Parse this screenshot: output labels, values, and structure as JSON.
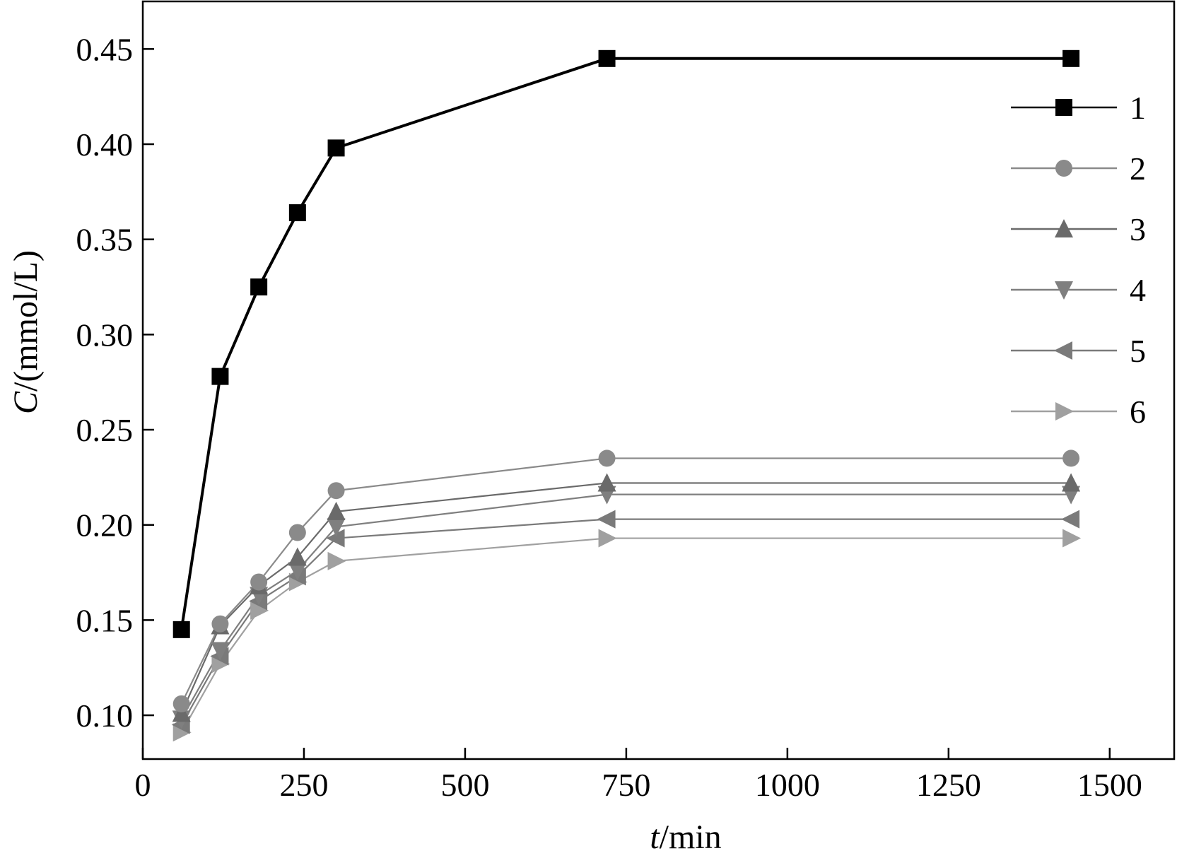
{
  "chart_data": {
    "type": "line",
    "xlabel": {
      "var": "t",
      "unit": "/min"
    },
    "ylabel": {
      "var": "C",
      "unit": "/(mmol/L)"
    },
    "xlim": [
      0,
      1600
    ],
    "ylim": [
      0.077,
      0.475
    ],
    "xticks": [
      0,
      250,
      500,
      750,
      1000,
      1250,
      1500
    ],
    "xtick_labels": [
      "0",
      "250",
      "500",
      "750",
      "1000",
      "1250",
      "1500"
    ],
    "yticks": [
      0.1,
      0.15,
      0.2,
      0.25,
      0.3,
      0.35,
      0.4,
      0.45
    ],
    "ytick_labels": [
      "0.10",
      "0.15",
      "0.20",
      "0.25",
      "0.30",
      "0.35",
      "0.40",
      "0.45"
    ],
    "grid": false,
    "legend_position": "right",
    "x": [
      60,
      120,
      180,
      240,
      300,
      720,
      1440
    ],
    "series": [
      {
        "name": "1",
        "marker": "square",
        "color": "#000000",
        "values": [
          0.145,
          0.278,
          0.325,
          0.364,
          0.398,
          0.445,
          0.445
        ]
      },
      {
        "name": "2",
        "marker": "circle",
        "color": "#8a8a8a",
        "values": [
          0.106,
          0.148,
          0.17,
          0.196,
          0.218,
          0.235,
          0.235
        ]
      },
      {
        "name": "3",
        "marker": "triangle-up",
        "color": "#6a6a6a",
        "values": [
          0.101,
          0.147,
          0.168,
          0.183,
          0.207,
          0.222,
          0.222
        ]
      },
      {
        "name": "4",
        "marker": "triangle-down",
        "color": "#7f7f7f",
        "values": [
          0.098,
          0.134,
          0.163,
          0.176,
          0.199,
          0.216,
          0.216
        ]
      },
      {
        "name": "5",
        "marker": "triangle-left",
        "color": "#7a7a7a",
        "values": [
          0.095,
          0.131,
          0.16,
          0.173,
          0.193,
          0.203,
          0.203
        ]
      },
      {
        "name": "6",
        "marker": "triangle-right",
        "color": "#a0a0a0",
        "values": [
          0.091,
          0.127,
          0.155,
          0.17,
          0.181,
          0.193,
          0.193
        ]
      }
    ]
  }
}
